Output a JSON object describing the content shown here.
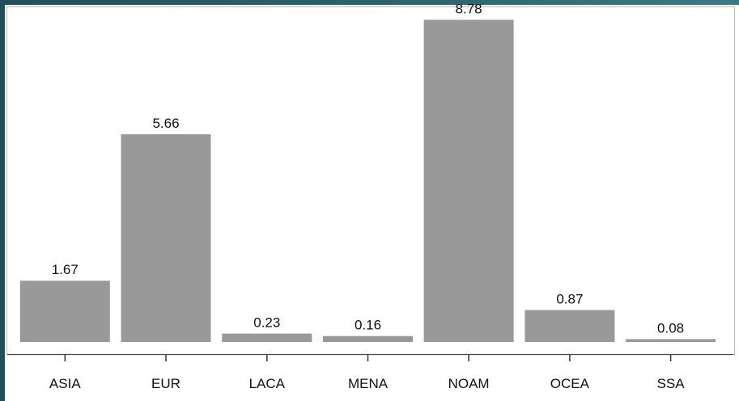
{
  "chart_data": {
    "type": "bar",
    "categories": [
      "ASIA",
      "EUR",
      "LACA",
      "MENA",
      "NOAM",
      "OCEA",
      "SSA"
    ],
    "values": [
      1.67,
      5.66,
      0.23,
      0.16,
      8.78,
      0.87,
      0.08
    ],
    "value_labels": [
      "1.67",
      "5.66",
      "0.23",
      "0.16",
      "8.78",
      "0.87",
      "0.08"
    ],
    "title": "",
    "xlabel": "",
    "ylabel": "",
    "ylim": [
      0,
      9.1
    ],
    "grid": false,
    "bar_color": "#999999"
  }
}
